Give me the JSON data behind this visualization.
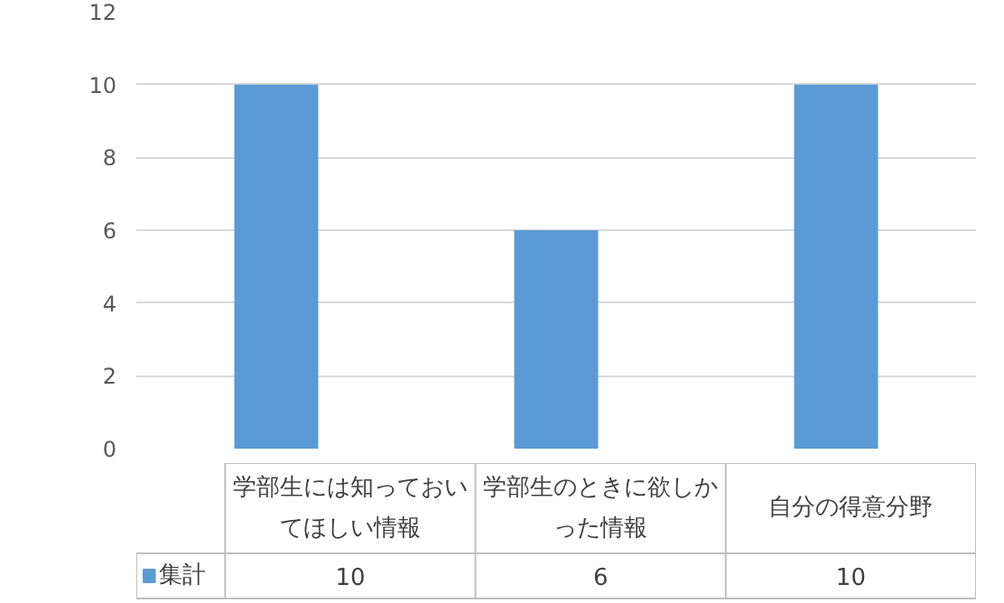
{
  "chart_data": {
    "type": "bar",
    "categories": [
      "学部生には知っておいてほしい情報",
      "学部生のときに欲しかった情報",
      "自分の得意分野"
    ],
    "series": [
      {
        "name": "集計",
        "color": "#5b9bd5",
        "values": [
          10,
          6,
          10
        ]
      }
    ],
    "ylim": [
      0,
      12
    ],
    "yticks": [
      0,
      2,
      4,
      6,
      8,
      10,
      12
    ],
    "grid": "y",
    "legend": "bottom",
    "data_labels": true
  }
}
